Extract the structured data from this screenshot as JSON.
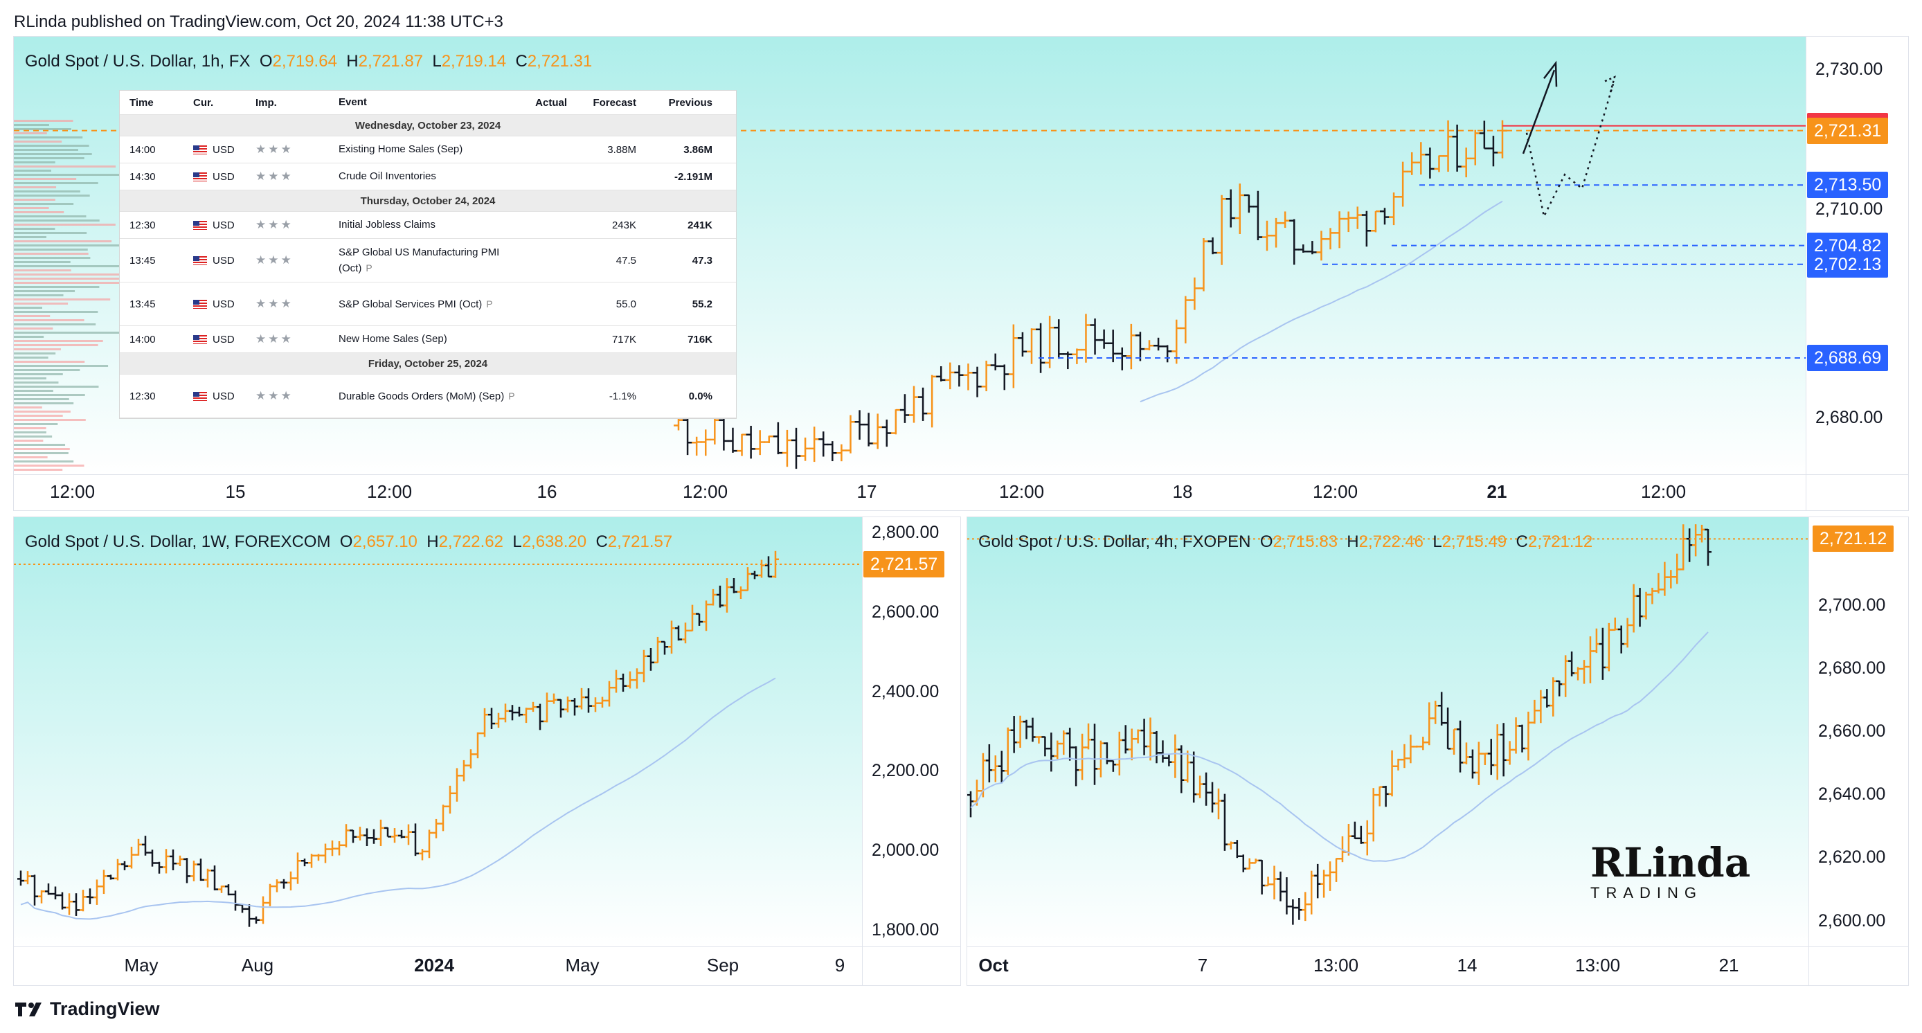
{
  "publisher": "RLinda published on TradingView.com, Oct 20, 2024 11:38 UTC+3",
  "footer_brand": "TradingView",
  "watermark": {
    "line1": "RLinda",
    "line2": "TRADING"
  },
  "colors": {
    "up": "#f7931a",
    "down": "#131722",
    "ma": "#a8c4f0",
    "dashed": "#2962ff",
    "bg_top": "#aeeeea"
  },
  "calendar": {
    "headers": [
      "Time",
      "Cur.",
      "Imp.",
      "Event",
      "Actual",
      "Forecast",
      "Previous"
    ],
    "rows": [
      {
        "kind": "day",
        "label": "Wednesday, October 23, 2024"
      },
      {
        "kind": "event",
        "time": "14:00",
        "cur": "USD",
        "event": "Existing Home Sales (Sep)",
        "p": false,
        "actual": "",
        "forecast": "3.88M",
        "previous": "3.86M"
      },
      {
        "kind": "event",
        "time": "14:30",
        "cur": "USD",
        "event": "Crude Oil Inventories",
        "p": false,
        "actual": "",
        "forecast": "",
        "previous": "-2.191M"
      },
      {
        "kind": "day",
        "label": "Thursday, October 24, 2024"
      },
      {
        "kind": "event",
        "time": "12:30",
        "cur": "USD",
        "event": "Initial Jobless Claims",
        "p": false,
        "actual": "",
        "forecast": "243K",
        "previous": "241K"
      },
      {
        "kind": "event",
        "time": "13:45",
        "cur": "USD",
        "event": "S&P Global US Manufacturing PMI (Oct)",
        "p": true,
        "actual": "",
        "forecast": "47.5",
        "previous": "47.3"
      },
      {
        "kind": "event",
        "time": "13:45",
        "cur": "USD",
        "event": "S&P Global Services PMI (Oct)",
        "p": true,
        "actual": "",
        "forecast": "55.0",
        "previous": "55.2"
      },
      {
        "kind": "event",
        "time": "14:00",
        "cur": "USD",
        "event": "New Home Sales (Sep)",
        "p": false,
        "actual": "",
        "forecast": "717K",
        "previous": "716K"
      },
      {
        "kind": "day",
        "label": "Friday, October 25, 2024"
      },
      {
        "kind": "event",
        "time": "12:30",
        "cur": "USD",
        "event": "Durable Goods Orders (MoM) (Sep)",
        "p": true,
        "actual": "",
        "forecast": "-1.1%",
        "previous": "0.0%"
      }
    ]
  },
  "chart_data": [
    {
      "type": "bar",
      "subtype": "ohlc",
      "header": {
        "symbol": "Gold Spot / U.S. Dollar, 1h, FX",
        "open": "2,719.64",
        "high": "2,721.87",
        "low": "2,719.14",
        "close": "2,721.31"
      },
      "x_ticks": [
        "12:00",
        "15",
        "12:00",
        "16",
        "12:00",
        "17",
        "12:00",
        "18",
        "12:00",
        "21",
        "12:00"
      ],
      "x_ticks_bold": [
        "21"
      ],
      "y_ticks": [
        "2,730.00",
        "2,710.00",
        "2,680.00"
      ],
      "price_tags": [
        {
          "label": "2,722.00",
          "value": 2722.0,
          "color": "#f23645"
        },
        {
          "label": "2,721.31",
          "value": 2721.31,
          "color": "#f7931a"
        },
        {
          "label": "2,713.50",
          "value": 2713.5,
          "color": "#2962ff"
        },
        {
          "label": "2,704.82",
          "value": 2704.82,
          "color": "#2962ff"
        },
        {
          "label": "2,702.13",
          "value": 2702.13,
          "color": "#2962ff"
        },
        {
          "label": "2,688.69",
          "value": 2688.69,
          "color": "#2962ff"
        }
      ],
      "ylim": [
        2672,
        2733
      ]
    },
    {
      "type": "bar",
      "subtype": "ohlc",
      "header": {
        "symbol": "Gold Spot / U.S. Dollar, 1W, FOREXCOM",
        "open": "2,657.10",
        "high": "2,722.62",
        "low": "2,638.20",
        "close": "2,721.57"
      },
      "x_ticks": [
        "May",
        "Aug",
        "2024",
        "May",
        "Sep",
        "9"
      ],
      "x_ticks_bold": [
        "2024"
      ],
      "y_ticks": [
        "2,800.00",
        "2,600.00",
        "2,400.00",
        "2,200.00",
        "2,000.00",
        "1,800.00"
      ],
      "price_tags": [
        {
          "label": "2,721.57",
          "value": 2721.57,
          "color": "#f7931a"
        }
      ],
      "ylim": [
        1760,
        2840
      ]
    },
    {
      "type": "bar",
      "subtype": "ohlc",
      "header": {
        "symbol": "Gold Spot / U.S. Dollar, 4h, FXOPEN",
        "open": "2,715.83",
        "high": "2,722.46",
        "low": "2,715.49",
        "close": "2,721.12"
      },
      "x_ticks": [
        "Oct",
        "7",
        "13:00",
        "14",
        "13:00",
        "21"
      ],
      "x_ticks_bold": [
        "Oct"
      ],
      "y_ticks": [
        "2,700.00",
        "2,680.00",
        "2,660.00",
        "2,640.00",
        "2,620.00",
        "2,600.00"
      ],
      "price_tags": [
        {
          "label": "2,721.12",
          "value": 2721.12,
          "color": "#f7931a"
        }
      ],
      "ylim": [
        2592,
        2728
      ]
    }
  ]
}
